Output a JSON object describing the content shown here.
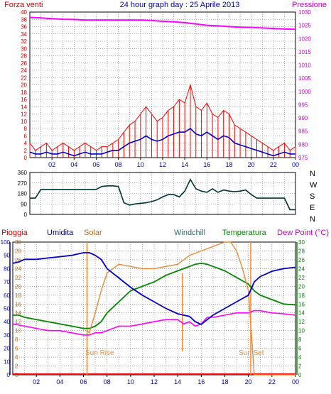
{
  "header": {
    "wind_title": "Forza venti",
    "day_title": "24 hour graph day : 25 Aprile 2013",
    "pressure_title": "Pressione"
  },
  "panel3_labels": {
    "pioggia": "Pioggia",
    "umidita": "Umidita",
    "solar": "Solar",
    "windchill": "Windchill",
    "temperatura": "Temperatura",
    "dew_point": "Dew Point (°C)",
    "sun_rise": "Sun Rise",
    "sun_set": "Sun Set"
  },
  "colors": {
    "wind_gust": "#ff0000",
    "wind_avg": "#0000cc",
    "pressure": "#ff00ff",
    "direction": "#003333",
    "humidity": "#0000cc",
    "solar": "#ee8833",
    "temperature": "#008800",
    "dew_point": "#ff00ff",
    "rain": "#ff0000",
    "sun_marker": "#ee8833",
    "grid": "#000000",
    "axis_left": "#cc0000",
    "axis_right": "#cc00cc",
    "axis_blue": "#0000aa",
    "axis_green": "#008800"
  },
  "chart_data": [
    {
      "type": "line",
      "title": "24 hour graph day : 25 Aprile 2013",
      "x_ticks": [
        "02",
        "04",
        "06",
        "08",
        "10",
        "12",
        "14",
        "16",
        "18",
        "20",
        "22",
        "00"
      ],
      "x_range_hours": [
        0,
        24
      ],
      "ylim_left": [
        0,
        40
      ],
      "y_ticks_left": [
        0,
        2,
        4,
        6,
        8,
        10,
        12,
        14,
        16,
        18,
        20,
        22,
        24,
        26,
        28,
        30,
        32,
        34,
        36,
        38,
        40
      ],
      "ylim_right": [
        975,
        1030
      ],
      "y_ticks_right": [
        975,
        980,
        985,
        990,
        995,
        1000,
        1005,
        1010,
        1015,
        1020,
        1025,
        1030
      ],
      "series": [
        {
          "name": "Forza venti",
          "axis": "left",
          "color_key": "wind_gust",
          "x": [
            0,
            0.5,
            1,
            1.5,
            2,
            2.5,
            3,
            3.5,
            4,
            4.5,
            5,
            5.5,
            6,
            6.5,
            7,
            7.5,
            8,
            8.5,
            9,
            9.5,
            10,
            10.5,
            11,
            11.5,
            12,
            12.5,
            13,
            13.5,
            14,
            14.5,
            15,
            15.5,
            16,
            16.5,
            17,
            17.5,
            18,
            18.5,
            19,
            19.5,
            20,
            20.5,
            21,
            21.5,
            22,
            22.5,
            23,
            23.5,
            24
          ],
          "values": [
            4,
            2,
            3,
            4,
            2,
            3,
            4,
            3,
            2,
            3,
            4,
            3,
            2,
            3,
            3,
            4,
            5,
            7,
            9,
            10,
            12,
            14,
            12,
            10,
            11,
            13,
            14,
            16,
            15,
            20,
            14,
            13,
            15,
            12,
            11,
            13,
            12,
            9,
            8,
            7,
            6,
            5,
            4,
            3,
            2,
            3,
            4,
            2,
            3
          ]
        },
        {
          "name": "",
          "axis": "left",
          "color_key": "wind_avg",
          "x": [
            0,
            0.5,
            1,
            1.5,
            2,
            2.5,
            3,
            3.5,
            4,
            4.5,
            5,
            5.5,
            6,
            6.5,
            7,
            7.5,
            8,
            8.5,
            9,
            9.5,
            10,
            10.5,
            11,
            11.5,
            12,
            12.5,
            13,
            13.5,
            14,
            14.5,
            15,
            15.5,
            16,
            16.5,
            17,
            17.5,
            18,
            18.5,
            19,
            19.5,
            20,
            20.5,
            21,
            21.5,
            22,
            22.5,
            23,
            23.5,
            24
          ],
          "values": [
            1.5,
            1,
            1,
            1.5,
            1,
            1,
            1.5,
            1,
            0.5,
            1,
            1.5,
            1,
            1,
            1,
            1.5,
            2,
            2,
            3,
            4,
            4.5,
            5,
            6,
            5,
            4.5,
            5,
            6,
            6.5,
            7,
            7,
            8,
            6.5,
            6,
            7,
            6,
            5,
            6,
            5.5,
            4,
            3.5,
            3,
            2.5,
            2,
            1.5,
            1,
            0.5,
            1,
            1.5,
            1,
            1
          ]
        },
        {
          "name": "Pressione",
          "axis": "right",
          "color_key": "pressure",
          "x": [
            0,
            1,
            2,
            3,
            4,
            5,
            6,
            7,
            8,
            9,
            10,
            11,
            12,
            13,
            14,
            15,
            16,
            17,
            18,
            19,
            20,
            21,
            22,
            23,
            24
          ],
          "values": [
            1028,
            1027.8,
            1027.5,
            1027.3,
            1027.2,
            1027,
            1027,
            1027,
            1027,
            1027,
            1027,
            1026.8,
            1026.5,
            1026.3,
            1026,
            1025.5,
            1025,
            1024.8,
            1024.5,
            1024.3,
            1024.2,
            1024,
            1023.8,
            1023.6,
            1023.5
          ]
        }
      ]
    },
    {
      "type": "line",
      "title": "",
      "x_range_hours": [
        0,
        24
      ],
      "ylim": [
        0,
        360
      ],
      "y_ticks": [
        0,
        90,
        180,
        270,
        360
      ],
      "compass_labels": [
        "N",
        "W",
        "S",
        "E",
        "N"
      ],
      "series": [
        {
          "name": "",
          "color_key": "direction",
          "x": [
            0,
            0.5,
            1,
            1.5,
            2,
            3,
            4,
            5,
            6,
            6.5,
            7,
            7.5,
            8,
            8.5,
            9,
            9.5,
            10,
            10.5,
            11,
            11.5,
            12,
            12.5,
            13,
            13.5,
            14,
            14.5,
            15,
            15.5,
            16,
            16.5,
            17,
            17.5,
            18,
            18.5,
            19,
            19.5,
            20,
            20.5,
            21,
            22,
            23,
            23.5,
            24
          ],
          "values": [
            140,
            140,
            215,
            215,
            215,
            215,
            215,
            215,
            215,
            240,
            245,
            245,
            240,
            100,
            80,
            90,
            95,
            100,
            110,
            125,
            150,
            170,
            170,
            150,
            200,
            300,
            220,
            200,
            190,
            220,
            190,
            210,
            200,
            195,
            200,
            210,
            170,
            140,
            140,
            140,
            140,
            40,
            40
          ]
        }
      ]
    },
    {
      "type": "line",
      "title": "",
      "x_ticks": [
        "02",
        "04",
        "06",
        "08",
        "10",
        "12",
        "14",
        "16",
        "18",
        "20",
        "22",
        "00"
      ],
      "x_range_hours": [
        0,
        24
      ],
      "ylim_left": [
        0,
        100
      ],
      "y_ticks_left": [
        0,
        10,
        20,
        30,
        40,
        50,
        60,
        70,
        80,
        90,
        100
      ],
      "ylim_mid": [
        0,
        30
      ],
      "y_ticks_mid": [
        0,
        2,
        4,
        6,
        8,
        10,
        12,
        14,
        16,
        18,
        20,
        22,
        24,
        26,
        28,
        30
      ],
      "ylim_right": [
        0,
        30
      ],
      "y_ticks_right": [
        0,
        2,
        4,
        6,
        8,
        10,
        12,
        14,
        16,
        18,
        20,
        22,
        24,
        26,
        28,
        30
      ],
      "sun_rise_hour": 6.3,
      "sun_set_hour": 20.2,
      "series": [
        {
          "name": "Umidita",
          "axis": "left",
          "color_key": "humidity",
          "x": [
            0,
            0.5,
            1,
            2,
            3,
            4,
            5,
            6,
            6.5,
            7,
            7.5,
            8,
            9,
            10,
            11,
            12,
            13,
            14,
            14.5,
            15,
            15.5,
            16,
            17,
            18,
            19,
            20,
            20.5,
            21,
            21.5,
            22,
            23,
            24
          ],
          "values": [
            84,
            85,
            87,
            87,
            88,
            89,
            90,
            92,
            92,
            90,
            87,
            80,
            73,
            66,
            60,
            55,
            50,
            46,
            45,
            44,
            40,
            38,
            45,
            50,
            55,
            60,
            70,
            74,
            76,
            78,
            80,
            81
          ]
        },
        {
          "name": "Solar",
          "axis": "mid",
          "color_key": "solar",
          "x": [
            6.3,
            6.5,
            7,
            7.5,
            8,
            9,
            10,
            11,
            12,
            13,
            14,
            14.5,
            15,
            16,
            17,
            18,
            18.5,
            19,
            19.5,
            20,
            20.5,
            21,
            22,
            23,
            24
          ],
          "values": [
            10,
            9.5,
            14,
            19,
            23,
            25,
            24.5,
            24,
            24,
            24.5,
            25,
            26,
            27,
            28,
            29,
            30,
            30,
            28,
            24,
            19,
            0,
            0,
            0,
            0,
            0
          ]
        },
        {
          "name": "Temperatura",
          "axis": "right",
          "color_key": "temperature",
          "x": [
            0,
            0.5,
            1,
            2,
            3,
            4,
            5,
            6,
            6.5,
            7,
            7.5,
            8,
            9,
            10,
            11,
            12,
            13,
            14,
            14.5,
            15,
            15.5,
            16,
            16.5,
            17,
            18,
            19,
            20,
            20.5,
            21,
            21.5,
            22,
            22.5,
            23,
            24
          ],
          "values": [
            13.5,
            13.5,
            13,
            12.5,
            12,
            11.5,
            11,
            10.5,
            10.5,
            11,
            12,
            14,
            16.5,
            19,
            20,
            21,
            22.5,
            23.5,
            24,
            24.5,
            25,
            25.2,
            25,
            24.5,
            23.5,
            22,
            20.5,
            19,
            18,
            17.5,
            17,
            16.5,
            16,
            15.8
          ]
        },
        {
          "name": "Dew Point (°C)",
          "axis": "right",
          "color_key": "dew_point",
          "x": [
            0,
            1,
            2,
            3,
            4,
            5,
            6,
            6.5,
            7,
            7.5,
            8,
            9,
            10,
            11,
            12,
            13,
            14,
            14.5,
            15,
            15.5,
            16,
            16.5,
            17,
            18,
            19,
            20,
            20.5,
            21,
            22,
            23,
            24
          ],
          "values": [
            11.5,
            11,
            10.5,
            10,
            10,
            9.5,
            9,
            9,
            9.5,
            9.5,
            10,
            11,
            11,
            11.5,
            12,
            12.5,
            12.5,
            11.5,
            12,
            11,
            11.5,
            13,
            13,
            13.5,
            14,
            14,
            14.5,
            14.5,
            14,
            13.8,
            13.5
          ]
        }
      ]
    }
  ]
}
